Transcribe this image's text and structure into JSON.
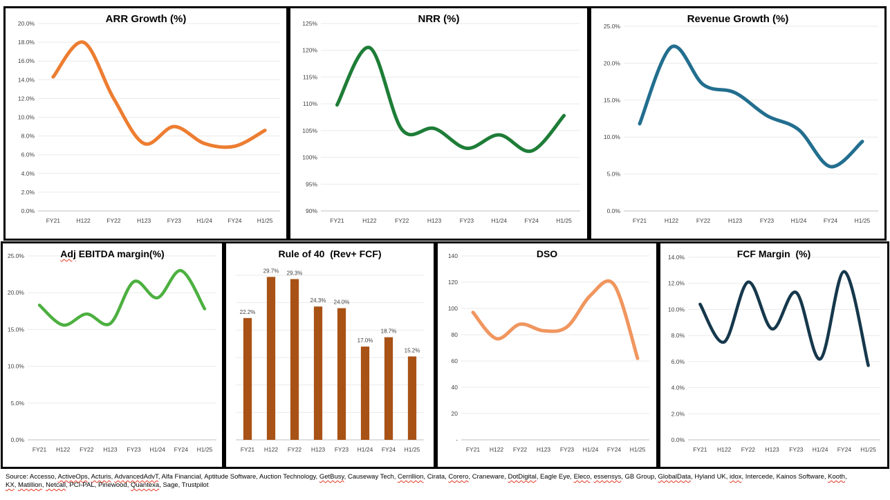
{
  "style": {
    "panel_border_color": "#000000",
    "background_color": "#FFFFFF",
    "grid_color": "#E9E9E9",
    "axis_color": "#BFBFBF",
    "tick_color": "#3F3F3F",
    "title_color": "#000000",
    "spellcheck_underline_color": "#E0351F"
  },
  "chart_data": [
    {
      "id": "arr-growth",
      "type": "line",
      "title": "ARR Growth (%)",
      "color": "#ED7D31",
      "categories": [
        "FY21",
        "H122",
        "FY22",
        "H123",
        "FY23",
        "H1/24",
        "FY24",
        "H1/25"
      ],
      "values": [
        14.3,
        18.0,
        12.0,
        7.2,
        9.0,
        7.2,
        6.9,
        8.6
      ],
      "ylim": [
        0,
        20
      ],
      "y_ticks": [
        {
          "v": 20,
          "label": "20.0%"
        },
        {
          "v": 18,
          "label": "18.0%"
        },
        {
          "v": 16,
          "label": "16.0%"
        },
        {
          "v": 14,
          "label": "14.0%"
        },
        {
          "v": 12,
          "label": "12.0%"
        },
        {
          "v": 10,
          "label": "10.0%"
        },
        {
          "v": 8,
          "label": "8.0%"
        },
        {
          "v": 6,
          "label": "6.0%"
        },
        {
          "v": 4,
          "label": "4.0%"
        },
        {
          "v": 2,
          "label": "2.0%"
        },
        {
          "v": 0,
          "label": "0.0%"
        }
      ],
      "grid": true,
      "legend": "none"
    },
    {
      "id": "nrr",
      "type": "line",
      "title": "NRR (%)",
      "color": "#1E7D37",
      "categories": [
        "FY21",
        "H122",
        "FY22",
        "H123",
        "FY23",
        "H1/24",
        "FY24",
        "H1/25"
      ],
      "values": [
        109.8,
        120.5,
        105.2,
        105.4,
        101.7,
        104.2,
        101.2,
        107.8
      ],
      "ylim": [
        90,
        125
      ],
      "y_ticks": [
        {
          "v": 125,
          "label": "125%"
        },
        {
          "v": 120,
          "label": "120%"
        },
        {
          "v": 115,
          "label": "115%"
        },
        {
          "v": 110,
          "label": "110%"
        },
        {
          "v": 105,
          "label": "105%"
        },
        {
          "v": 100,
          "label": "100%"
        },
        {
          "v": 95,
          "label": "95%"
        },
        {
          "v": 90,
          "label": "90%"
        }
      ],
      "grid": true,
      "legend": "none"
    },
    {
      "id": "revenue-growth",
      "type": "line",
      "title": "Revenue Growth (%)",
      "color": "#226E8F",
      "categories": [
        "FY21",
        "H122",
        "FY22",
        "H123",
        "FY23",
        "H1/24",
        "FY24",
        "H1/25"
      ],
      "values": [
        11.8,
        22.2,
        17.1,
        16.0,
        12.9,
        11.0,
        6.0,
        9.4
      ],
      "ylim": [
        0,
        25
      ],
      "y_ticks": [
        {
          "v": 25,
          "label": "25.0%"
        },
        {
          "v": 20,
          "label": "20.0%"
        },
        {
          "v": 15,
          "label": "15.0%"
        },
        {
          "v": 10,
          "label": "10.0%"
        },
        {
          "v": 5,
          "label": "5.0%"
        },
        {
          "v": 0,
          "label": "0.0%"
        }
      ],
      "grid": true,
      "legend": "none"
    },
    {
      "id": "adj-ebitda-margin",
      "type": "line",
      "title": "Adj EBITDA margin(%)",
      "title_spellcheck": [
        "Adj"
      ],
      "color": "#4DB040",
      "categories": [
        "FY21",
        "H122",
        "FY22",
        "H123",
        "FY23",
        "H1/24",
        "FY24",
        "H1/25"
      ],
      "values": [
        18.3,
        15.6,
        17.1,
        15.8,
        21.5,
        19.3,
        23.0,
        17.8
      ],
      "ylim": [
        0,
        25
      ],
      "y_ticks": [
        {
          "v": 25,
          "label": "25.0%"
        },
        {
          "v": 20,
          "label": "20.0%"
        },
        {
          "v": 15,
          "label": "15.0%"
        },
        {
          "v": 10,
          "label": "10.0%"
        },
        {
          "v": 5,
          "label": "5.0%"
        },
        {
          "v": 0,
          "label": "0.0%"
        }
      ],
      "grid": true,
      "legend": "none"
    },
    {
      "id": "rule-of-40",
      "type": "bar",
      "title": "Rule of 40  (Rev+ FCF)",
      "color": "#A85216",
      "categories": [
        "FY21",
        "H122",
        "FY22",
        "H123",
        "FY23",
        "H1/24",
        "FY24",
        "H1/25"
      ],
      "values": [
        22.2,
        29.7,
        29.3,
        24.3,
        24.0,
        17.0,
        18.7,
        15.2
      ],
      "data_labels": [
        "22.2%",
        "29.7%",
        "29.3%",
        "24.3%",
        "24.0%",
        "17.0%",
        "18.7%",
        "15.2%"
      ],
      "ylim": [
        0,
        30
      ],
      "grid_values": [
        5,
        10,
        15,
        20,
        25,
        30
      ],
      "grid": true,
      "legend": "none"
    },
    {
      "id": "dso",
      "type": "line",
      "title": "DSO",
      "color": "#F0965F",
      "categories": [
        "FY21",
        "H122",
        "FY22",
        "H123",
        "FY23",
        "H1/24",
        "FY24",
        "H1/25"
      ],
      "values": [
        97,
        77,
        88,
        83,
        86,
        110,
        118,
        62
      ],
      "ylim": [
        0,
        140
      ],
      "y_ticks": [
        {
          "v": 140,
          "label": "140"
        },
        {
          "v": 120,
          "label": "120"
        },
        {
          "v": 100,
          "label": "100"
        },
        {
          "v": 80,
          "label": "80"
        },
        {
          "v": 60,
          "label": "60"
        },
        {
          "v": 40,
          "label": "40"
        },
        {
          "v": 20,
          "label": "20"
        },
        {
          "v": 0,
          "label": "-"
        }
      ],
      "grid": true,
      "legend": "none"
    },
    {
      "id": "fcf-margin",
      "type": "line",
      "title": "FCF Margin  (%)",
      "color": "#16384C",
      "categories": [
        "FY21",
        "H122",
        "FY22",
        "H123",
        "FY23",
        "H1/24",
        "FY24",
        "H1/25"
      ],
      "values": [
        10.4,
        7.5,
        12.1,
        8.5,
        11.3,
        6.2,
        12.9,
        5.7
      ],
      "ylim": [
        0,
        14
      ],
      "y_ticks": [
        {
          "v": 14,
          "label": "14.0%"
        },
        {
          "v": 12,
          "label": "12.0%"
        },
        {
          "v": 10,
          "label": "10.0%"
        },
        {
          "v": 8,
          "label": "8.0%"
        },
        {
          "v": 6,
          "label": "6.0%"
        },
        {
          "v": 4,
          "label": "4.0%"
        },
        {
          "v": 2,
          "label": "2.0%"
        },
        {
          "v": 0,
          "label": "0.0%"
        }
      ],
      "grid": true,
      "legend": "none"
    }
  ],
  "footer": {
    "line1": [
      {
        "text": "Source: Accesso, "
      },
      {
        "text": "ActiveOps",
        "m": true
      },
      {
        "text": ", "
      },
      {
        "text": "Acturis",
        "m": true
      },
      {
        "text": ", "
      },
      {
        "text": "AdvancedAdvT",
        "m": true
      },
      {
        "text": ", Alfa Financial, Aptitude Software, Auction Technology, "
      },
      {
        "text": "GetBusy",
        "m": true
      },
      {
        "text": ", Causeway Tech, "
      },
      {
        "text": "Cerrillion",
        "m": true
      },
      {
        "text": ", Cirata, "
      },
      {
        "text": "Corero",
        "m": true
      },
      {
        "text": ", Craneware, "
      },
      {
        "text": "DotDigital",
        "m": true
      },
      {
        "text": ", Eagle Eye, "
      },
      {
        "text": "Eleco",
        "m": true
      },
      {
        "text": ", "
      },
      {
        "text": "essensys",
        "m": true
      },
      {
        "text": ", GB Group, "
      },
      {
        "text": "GlobalData",
        "m": true
      },
      {
        "text": ", Hyland UK, "
      },
      {
        "text": "idox",
        "m": true
      },
      {
        "text": ", Intercede, Kainos Software, "
      },
      {
        "text": "Kooth",
        "m": true
      },
      {
        "text": ","
      }
    ],
    "line2": [
      {
        "text": "KX",
        "m": true
      },
      {
        "text": ", "
      },
      {
        "text": "Matillion",
        "m": true
      },
      {
        "text": ", "
      },
      {
        "text": "Netcall",
        "m": true
      },
      {
        "text": ", PCI-PAL, Pinewood, "
      },
      {
        "text": "Quantexa",
        "m": true
      },
      {
        "text": ", Sage, Trustpilot"
      }
    ]
  }
}
